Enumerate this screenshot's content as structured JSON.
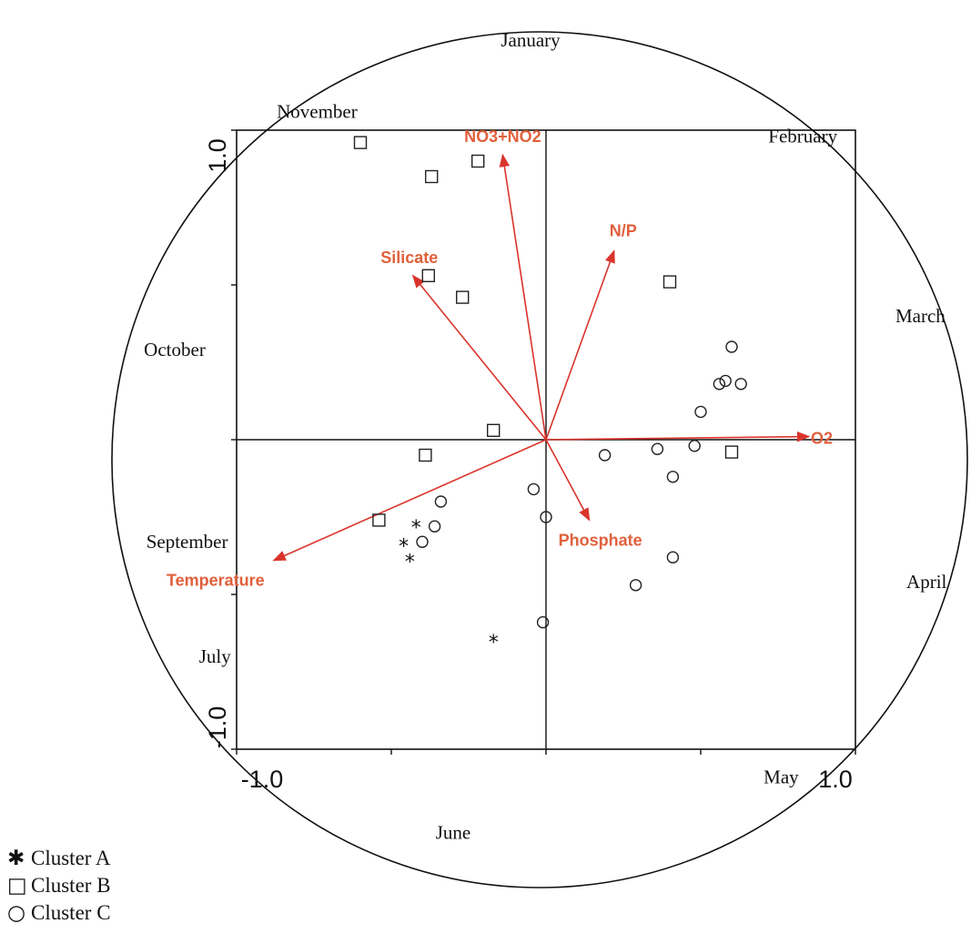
{
  "chart_data": {
    "type": "scatter",
    "xlim": [
      -1.0,
      1.0
    ],
    "ylim": [
      -1.0,
      1.0
    ],
    "tick_labels": {
      "x_min": "-1.0",
      "x_max": "1.0",
      "y_min": "-1.0",
      "y_max": "1.0"
    },
    "months": [
      {
        "label": "January",
        "x": -0.05,
        "y": 1.27
      },
      {
        "label": "February",
        "x": 0.83,
        "y": 0.96
      },
      {
        "label": "March",
        "x": 1.21,
        "y": 0.38
      },
      {
        "label": "April",
        "x": 1.23,
        "y": -0.48
      },
      {
        "label": "May",
        "x": 0.76,
        "y": -1.11
      },
      {
        "label": "June",
        "x": -0.3,
        "y": -1.29
      },
      {
        "label": "July",
        "x": -1.07,
        "y": -0.72
      },
      {
        "label": "September",
        "x": -1.16,
        "y": -0.35
      },
      {
        "label": "October",
        "x": -1.2,
        "y": 0.27
      },
      {
        "label": "November",
        "x": -0.74,
        "y": 1.04
      }
    ],
    "vectors": [
      {
        "name": "NO3+NO2",
        "x": -0.14,
        "y": 0.92
      },
      {
        "name": "N/P",
        "x": 0.22,
        "y": 0.61
      },
      {
        "name": "Silicate",
        "x": -0.43,
        "y": 0.53
      },
      {
        "name": "O2",
        "x": 0.85,
        "y": 0.01
      },
      {
        "name": "Phosphate",
        "x": 0.14,
        "y": -0.26
      },
      {
        "name": "Temperature",
        "x": -0.88,
        "y": -0.39
      }
    ],
    "series": [
      {
        "name": "Cluster A",
        "marker": "asterisk",
        "points": [
          {
            "x": -0.42,
            "y": -0.28
          },
          {
            "x": -0.46,
            "y": -0.34
          },
          {
            "x": -0.44,
            "y": -0.39
          },
          {
            "x": -0.17,
            "y": -0.65
          }
        ]
      },
      {
        "name": "Cluster B",
        "marker": "square",
        "points": [
          {
            "x": -0.6,
            "y": 0.96
          },
          {
            "x": -0.37,
            "y": 0.85
          },
          {
            "x": -0.22,
            "y": 0.9
          },
          {
            "x": -0.38,
            "y": 0.53
          },
          {
            "x": -0.27,
            "y": 0.46
          },
          {
            "x": 0.4,
            "y": 0.51
          },
          {
            "x": -0.17,
            "y": 0.03
          },
          {
            "x": -0.39,
            "y": -0.05
          },
          {
            "x": -0.54,
            "y": -0.26
          },
          {
            "x": 0.6,
            "y": -0.04
          }
        ]
      },
      {
        "name": "Cluster C",
        "marker": "circle",
        "points": [
          {
            "x": 0.6,
            "y": 0.3
          },
          {
            "x": 0.56,
            "y": 0.18
          },
          {
            "x": 0.58,
            "y": 0.19
          },
          {
            "x": 0.63,
            "y": 0.18
          },
          {
            "x": 0.5,
            "y": 0.09
          },
          {
            "x": 0.19,
            "y": -0.05
          },
          {
            "x": 0.36,
            "y": -0.03
          },
          {
            "x": 0.48,
            "y": -0.02
          },
          {
            "x": 0.41,
            "y": -0.12
          },
          {
            "x": -0.04,
            "y": -0.16
          },
          {
            "x": -0.34,
            "y": -0.2
          },
          {
            "x": 0.0,
            "y": -0.25
          },
          {
            "x": -0.36,
            "y": -0.28
          },
          {
            "x": -0.4,
            "y": -0.33
          },
          {
            "x": 0.41,
            "y": -0.38
          },
          {
            "x": 0.29,
            "y": -0.47
          },
          {
            "x": -0.01,
            "y": -0.59
          }
        ]
      }
    ]
  },
  "legend": [
    {
      "symbol": "✱",
      "label": "Cluster A"
    },
    {
      "symbol": "□",
      "label": "Cluster B"
    },
    {
      "symbol": "○",
      "label": "Cluster C"
    }
  ],
  "colors": {
    "vector": "#d9342b",
    "vector_label": "#e0603c",
    "marker": "#222222"
  }
}
